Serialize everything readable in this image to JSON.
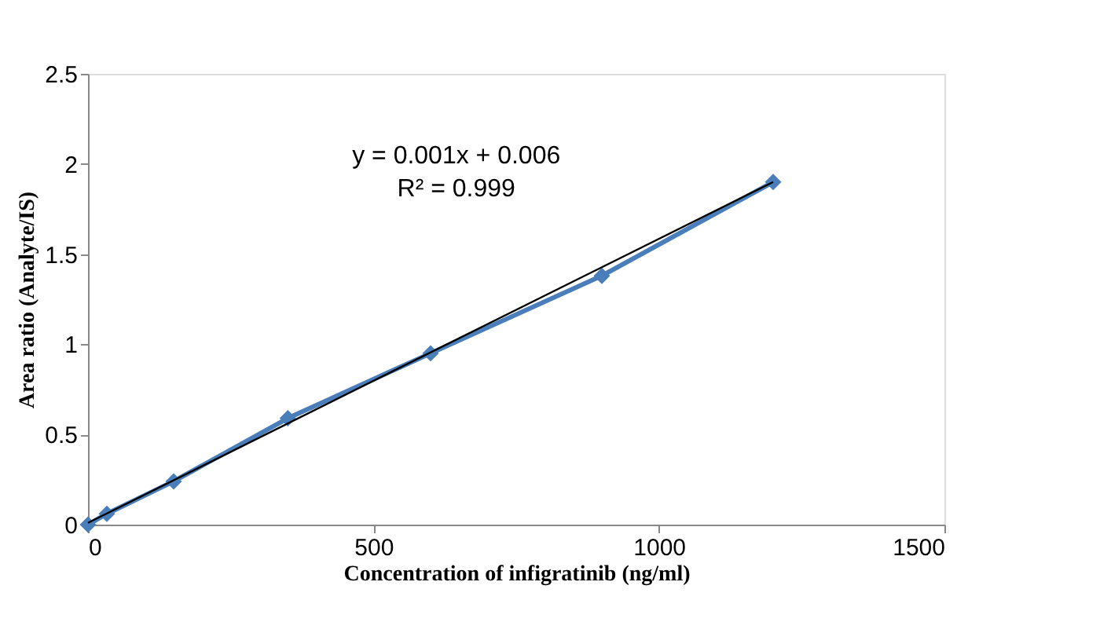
{
  "chart_data": {
    "type": "line",
    "xlabel": "Concentration of infigratinib (ng/ml)",
    "ylabel": "Area ratio (Analyte/IS)",
    "xlim": [
      0,
      1500
    ],
    "xticks": [
      0,
      500,
      1000,
      1500
    ],
    "ylim": [
      0,
      2.5
    ],
    "yticks": [
      0,
      0.5,
      1,
      1.5,
      2,
      2.5
    ],
    "grid": false,
    "series": [
      {
        "color": "#4a7ebb",
        "marker": "diamond",
        "x": [
          0,
          33,
          150,
          350,
          600,
          900,
          1200
        ],
        "values": [
          0.0,
          0.06,
          0.24,
          0.59,
          0.95,
          1.38,
          1.9
        ]
      },
      {
        "color": "#000000",
        "marker": "none",
        "x": [
          0,
          1200
        ],
        "values": [
          0.01,
          1.9
        ]
      }
    ],
    "annotations": [
      "y = 0.001x + 0.006",
      "R² = 0.999"
    ]
  }
}
